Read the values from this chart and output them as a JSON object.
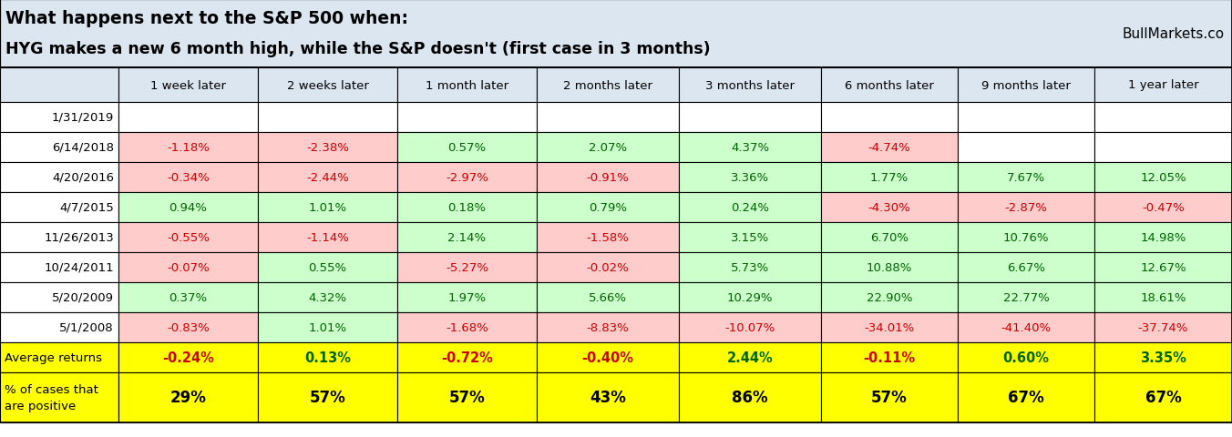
{
  "title_line1": "What happens next to the S&P 500 when:",
  "title_line2": "HYG makes a new 6 month high, while the S&P doesn't (first case in 3 months)",
  "watermark": "BullMarkets.co",
  "col_headers": [
    "",
    "1 week later",
    "2 weeks later",
    "1 month later",
    "2 months later",
    "3 months later",
    "6 months later",
    "9 months later",
    "1 year later"
  ],
  "rows": [
    [
      "1/31/2019",
      "",
      "",
      "",
      "",
      "",
      "",
      "",
      ""
    ],
    [
      "6/14/2018",
      "-1.18%",
      "-2.38%",
      "0.57%",
      "2.07%",
      "4.37%",
      "-4.74%",
      "",
      ""
    ],
    [
      "4/20/2016",
      "-0.34%",
      "-2.44%",
      "-2.97%",
      "-0.91%",
      "3.36%",
      "1.77%",
      "7.67%",
      "12.05%"
    ],
    [
      "4/7/2015",
      "0.94%",
      "1.01%",
      "0.18%",
      "0.79%",
      "0.24%",
      "-4.30%",
      "-2.87%",
      "-0.47%"
    ],
    [
      "11/26/2013",
      "-0.55%",
      "-1.14%",
      "2.14%",
      "-1.58%",
      "3.15%",
      "6.70%",
      "10.76%",
      "14.98%"
    ],
    [
      "10/24/2011",
      "-0.07%",
      "0.55%",
      "-5.27%",
      "-0.02%",
      "5.73%",
      "10.88%",
      "6.67%",
      "12.67%"
    ],
    [
      "5/20/2009",
      "0.37%",
      "4.32%",
      "1.97%",
      "5.66%",
      "10.29%",
      "22.90%",
      "22.77%",
      "18.61%"
    ],
    [
      "5/1/2008",
      "-0.83%",
      "1.01%",
      "-1.68%",
      "-8.83%",
      "-10.07%",
      "-34.01%",
      "-41.40%",
      "-37.74%"
    ]
  ],
  "avg_row": [
    "Average returns",
    "-0.24%",
    "0.13%",
    "-0.72%",
    "-0.40%",
    "2.44%",
    "-0.11%",
    "0.60%",
    "3.35%"
  ],
  "pct_row_label1": "% of cases that",
  "pct_row_label2": "are positive",
  "pct_row": [
    "29%",
    "57%",
    "57%",
    "43%",
    "86%",
    "57%",
    "67%",
    "67%"
  ],
  "header_bg": "#dce6f1",
  "title_bg": "#dce6f1",
  "avg_bg": "#ffff00",
  "color_positive": "#006400",
  "color_negative": "#cc0000",
  "cell_bg_positive": "#ccffcc",
  "cell_bg_negative": "#ffcccc",
  "cell_bg_empty": "#ffffff",
  "border_color": "#000000",
  "figsize": [
    13.52,
    4.81
  ],
  "dpi": 100
}
